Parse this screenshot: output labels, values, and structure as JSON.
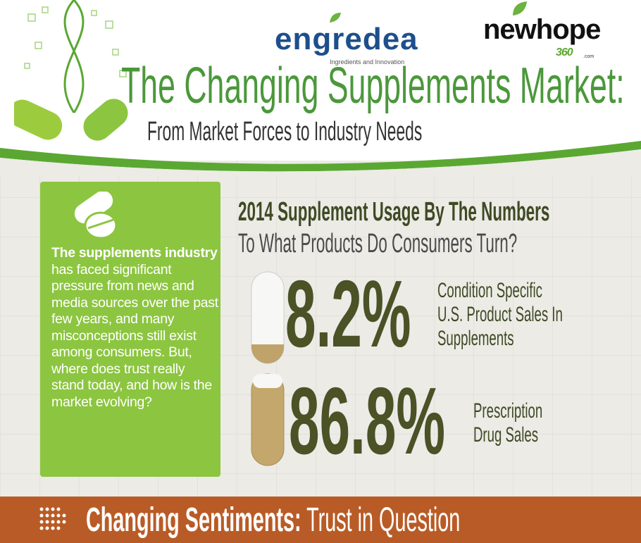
{
  "logos": {
    "engredea": "engredea",
    "engredea_tagline": "Ingredients and Innovation",
    "newhope": "newhope",
    "newhope_num": "360",
    "newhope_suffix": ".com"
  },
  "header": {
    "title": "The Changing Supplements Market:",
    "subtitle": "From Market Forces to Industry Needs"
  },
  "sidebar": {
    "bold_lead": "The supplements industry",
    "text": " has faced significant pressure from news and media sources over the past few years, and many misconceptions still exist among consumers. But, where does trust really stand today, and how is the market evolving?",
    "icon": "pills-icon"
  },
  "stats": {
    "heading": "2014 Supplement Usage By The Numbers",
    "subheading": "To What Products Do Consumers Turn?",
    "items": [
      {
        "value": "8.2%",
        "label_lines": [
          "Condition Specific",
          "U.S. Product Sales In",
          "Supplements"
        ],
        "fill_percent": 8.2
      },
      {
        "value": "86.8%",
        "label_lines": [
          "Prescription",
          "Drug Sales"
        ],
        "fill_percent": 86.8
      }
    ]
  },
  "banner": {
    "bold": "Changing Sentiments:",
    "text": " Trust in Question"
  },
  "colors": {
    "green": "#8cc540",
    "title_green": "#4b983b",
    "olive": "#4a5226",
    "banner": "#b95b26"
  }
}
